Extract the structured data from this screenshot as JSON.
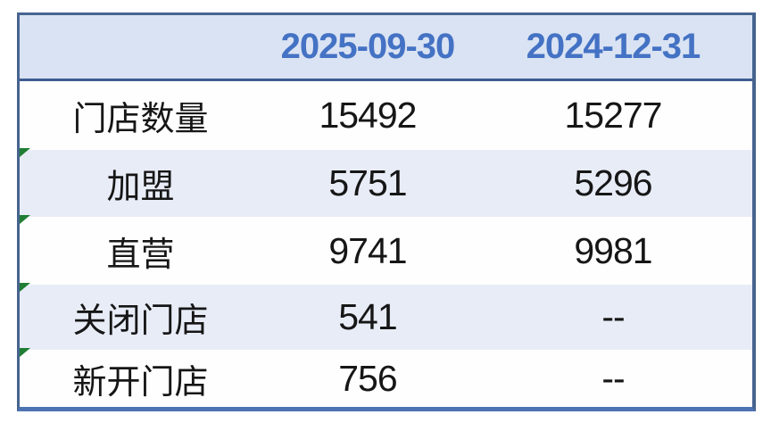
{
  "chart_data": {
    "type": "table",
    "columns": [
      "",
      "2025-09-30",
      "2024-12-31"
    ],
    "rows": [
      [
        "门店数量",
        15492,
        15277
      ],
      [
        "加盟",
        5751,
        5296
      ],
      [
        "直营",
        9741,
        9981
      ],
      [
        "关闭门店",
        541,
        "--"
      ],
      [
        "新开门店",
        756,
        "--"
      ]
    ],
    "notes": "green comment-flag markers on rows 加盟, 直营, 关闭门店, 新开门店"
  },
  "table": {
    "header": {
      "col1": "",
      "col2": "2025-09-30",
      "col3": "2024-12-31"
    },
    "rows": [
      {
        "label": "门店数量",
        "v1": "15492",
        "v2": "15277",
        "marker": false
      },
      {
        "label": "加盟",
        "v1": "5751",
        "v2": "5296",
        "marker": true
      },
      {
        "label": "直营",
        "v1": "9741",
        "v2": "9981",
        "marker": true
      },
      {
        "label": "关闭门店",
        "v1": "541",
        "v2": "--",
        "marker": true
      },
      {
        "label": "新开门店",
        "v1": "756",
        "v2": "--",
        "marker": true
      }
    ],
    "colors": {
      "header_bg": "#dae3f3",
      "header_text": "#4472c4",
      "row_bg": "#fefefe",
      "alt_row_bg": "#e8ecf7",
      "border_dark": "#46648f",
      "border_bottom": "#4d73b3",
      "header_separator": "#3e5c92",
      "marker_green": "#1f7e34",
      "body_text": "#161616"
    }
  }
}
